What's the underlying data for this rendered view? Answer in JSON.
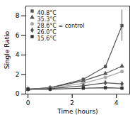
{
  "chart_data": {
    "type": "line",
    "xlabel": "Time (hours)",
    "ylabel": "Single Ratio",
    "xlim": [
      -0.1,
      4.6
    ],
    "ylim": [
      0,
      9
    ],
    "xticks": [
      0,
      2,
      4
    ],
    "yticks": [
      0,
      2,
      4,
      6,
      8
    ],
    "legend": "upper left",
    "x": [
      0,
      1,
      2.5,
      3.5,
      4.25
    ],
    "series": [
      {
        "name": "40.8°C",
        "color": "#555555",
        "marker": "square",
        "line_style": "solid",
        "values": [
          0.5,
          0.65,
          1.5,
          2.8,
          7.0
        ],
        "yerr": [
          0.05,
          0.05,
          0.15,
          0.2,
          1.6
        ]
      },
      {
        "name": "35.3°C",
        "color": "#555555",
        "marker": "triangle",
        "line_style": "solid",
        "values": [
          0.5,
          0.65,
          1.35,
          2.1,
          2.85
        ],
        "yerr": [
          0.05,
          0.05,
          0.1,
          0.15,
          0.2
        ]
      },
      {
        "name": "28.6°C = control",
        "color": "#aaaaaa",
        "marker": "circle",
        "line_style": "solid",
        "values": [
          0.5,
          0.6,
          1.1,
          1.7,
          2.3
        ],
        "yerr": [
          0.05,
          0.05,
          0.1,
          0.1,
          0.15
        ]
      },
      {
        "name": "26.0°C",
        "color": "#555555",
        "marker": "diamond",
        "line_style": "solid",
        "values": [
          0.5,
          0.55,
          0.85,
          1.15,
          1.05
        ],
        "yerr": [
          0.05,
          0.05,
          0.08,
          0.1,
          0.1
        ]
      },
      {
        "name": "15.6°C",
        "color": "#333333",
        "marker": "square",
        "line_style": "solid",
        "values": [
          0.5,
          0.5,
          0.6,
          0.65,
          0.6
        ],
        "yerr": [
          0.04,
          0.04,
          0.04,
          0.04,
          0.04
        ]
      }
    ]
  }
}
